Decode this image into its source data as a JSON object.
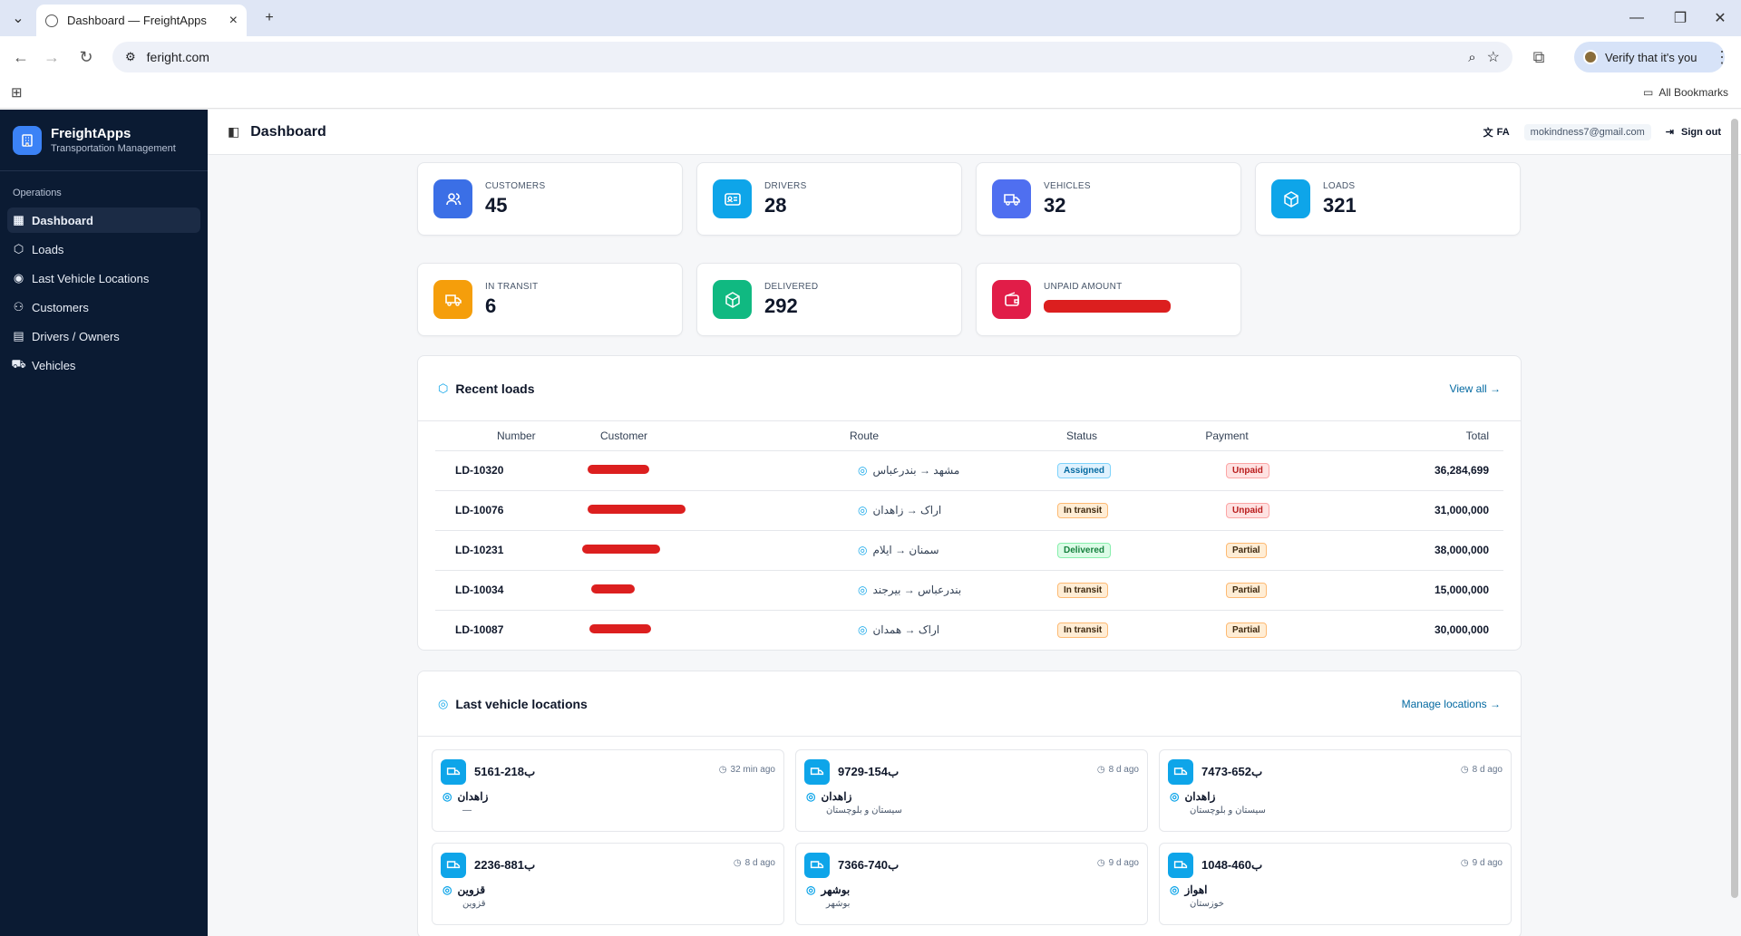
{
  "browser": {
    "tab_title": "Dashboard — FreightApps",
    "url": "feright.com",
    "verify_label": "Verify that it's you",
    "bookmarks_label": "All Bookmarks"
  },
  "sidebar": {
    "brand_name": "FreightApps",
    "brand_sub": "Transportation Management",
    "section": "Operations",
    "items": [
      {
        "label": "Dashboard",
        "icon": "grid-icon"
      },
      {
        "label": "Loads",
        "icon": "box-icon"
      },
      {
        "label": "Last Vehicle Locations",
        "icon": "pin-icon"
      },
      {
        "label": "Customers",
        "icon": "users-icon"
      },
      {
        "label": "Drivers / Owners",
        "icon": "id-card-icon"
      },
      {
        "label": "Vehicles",
        "icon": "truck-icon"
      }
    ]
  },
  "header": {
    "title": "Dashboard",
    "lang": "FA",
    "email": "mokindness7@gmail.com",
    "signout": "Sign out"
  },
  "stats": [
    {
      "label": "CUSTOMERS",
      "value": "45",
      "color": "#3b6fe6"
    },
    {
      "label": "DRIVERS",
      "value": "28",
      "color": "#0ea5e9"
    },
    {
      "label": "VEHICLES",
      "value": "32",
      "color": "#4f6ff0"
    },
    {
      "label": "LOADS",
      "value": "321",
      "color": "#0ea5e9"
    },
    {
      "label": "IN TRANSIT",
      "value": "6",
      "color": "#f59e0b"
    },
    {
      "label": "DELIVERED",
      "value": "292",
      "color": "#10b981"
    },
    {
      "label": "UNPAID AMOUNT",
      "value": "",
      "color": "#e11d48"
    }
  ],
  "recent": {
    "title": "Recent loads",
    "view_all": "View all →",
    "columns": [
      "Number",
      "Customer",
      "Route",
      "Status",
      "Payment",
      "Total"
    ],
    "rows": [
      {
        "number": "LD-10320",
        "route": "مشهد → بندرعباس",
        "status": "Assigned",
        "payment": "Unpaid",
        "total": "36,284,699"
      },
      {
        "number": "LD-10076",
        "route": "اراک → زاهدان",
        "status": "In transit",
        "payment": "Unpaid",
        "total": "31,000,000"
      },
      {
        "number": "LD-10231",
        "route": "سمنان → ایلام",
        "status": "Delivered",
        "payment": "Partial",
        "total": "38,000,000"
      },
      {
        "number": "LD-10034",
        "route": "بندرعباس → بیرجند",
        "status": "In transit",
        "payment": "Partial",
        "total": "15,000,000"
      },
      {
        "number": "LD-10087",
        "route": "اراک → همدان",
        "status": "In transit",
        "payment": "Partial",
        "total": "30,000,000"
      }
    ]
  },
  "locations": {
    "title": "Last vehicle locations",
    "manage": "Manage locations →",
    "vehicles": [
      {
        "plate": "5161-218ب",
        "time": "32 min ago",
        "city": "زاهدان",
        "province": "—"
      },
      {
        "plate": "9729-154ب",
        "time": "8 d ago",
        "city": "زاهدان",
        "province": "سیستان و بلوچستان"
      },
      {
        "plate": "7473-652ب",
        "time": "8 d ago",
        "city": "زاهدان",
        "province": "سیستان و بلوچستان"
      },
      {
        "plate": "2236-881ب",
        "time": "8 d ago",
        "city": "قزوین",
        "province": "قزوین"
      },
      {
        "plate": "7366-740ب",
        "time": "9 d ago",
        "city": "بوشهر",
        "province": "بوشهر"
      },
      {
        "plate": "1048-460ب",
        "time": "9 d ago",
        "city": "اهواز",
        "province": "خوزستان"
      }
    ]
  }
}
